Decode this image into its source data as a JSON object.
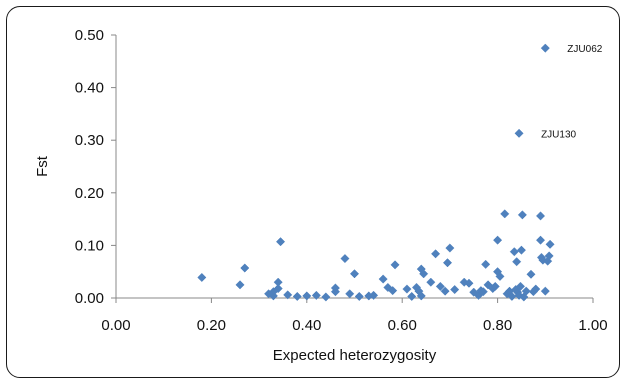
{
  "chart_data": {
    "type": "scatter",
    "xlabel": "Expected heterozygosity",
    "ylabel": "Fst",
    "xlim": [
      0,
      1
    ],
    "ylim": [
      0,
      0.5
    ],
    "x_ticks": [
      "0.00",
      "0.20",
      "0.40",
      "0.60",
      "0.80",
      "1.00"
    ],
    "y_ticks": [
      "0.00",
      "0.10",
      "0.20",
      "0.30",
      "0.40",
      "0.50"
    ],
    "grid": false,
    "marker_color": "#4f81bd",
    "series": [
      {
        "points": [
          [
            0.18,
            0.039
          ],
          [
            0.26,
            0.025
          ],
          [
            0.27,
            0.057
          ],
          [
            0.32,
            0.008
          ],
          [
            0.33,
            0.004
          ],
          [
            0.33,
            0.012
          ],
          [
            0.34,
            0.018
          ],
          [
            0.34,
            0.03
          ],
          [
            0.345,
            0.107
          ],
          [
            0.36,
            0.006
          ],
          [
            0.38,
            0.003
          ],
          [
            0.4,
            0.004
          ],
          [
            0.42,
            0.005
          ],
          [
            0.44,
            0.002
          ],
          [
            0.46,
            0.012
          ],
          [
            0.46,
            0.019
          ],
          [
            0.48,
            0.075
          ],
          [
            0.49,
            0.008
          ],
          [
            0.5,
            0.046
          ],
          [
            0.51,
            0.003
          ],
          [
            0.53,
            0.004
          ],
          [
            0.54,
            0.005
          ],
          [
            0.56,
            0.036
          ],
          [
            0.57,
            0.02
          ],
          [
            0.58,
            0.014
          ],
          [
            0.585,
            0.063
          ],
          [
            0.61,
            0.017
          ],
          [
            0.62,
            0.003
          ],
          [
            0.63,
            0.02
          ],
          [
            0.635,
            0.013
          ],
          [
            0.64,
            0.004
          ],
          [
            0.64,
            0.055
          ],
          [
            0.645,
            0.046
          ],
          [
            0.66,
            0.03
          ],
          [
            0.67,
            0.084
          ],
          [
            0.68,
            0.022
          ],
          [
            0.69,
            0.013
          ],
          [
            0.695,
            0.067
          ],
          [
            0.7,
            0.095
          ],
          [
            0.71,
            0.016
          ],
          [
            0.73,
            0.03
          ],
          [
            0.74,
            0.028
          ],
          [
            0.75,
            0.011
          ],
          [
            0.76,
            0.005
          ],
          [
            0.765,
            0.014
          ],
          [
            0.77,
            0.012
          ],
          [
            0.775,
            0.064
          ],
          [
            0.78,
            0.025
          ],
          [
            0.79,
            0.018
          ],
          [
            0.795,
            0.022
          ],
          [
            0.8,
            0.11
          ],
          [
            0.8,
            0.05
          ],
          [
            0.805,
            0.041
          ],
          [
            0.815,
            0.16
          ],
          [
            0.82,
            0.008
          ],
          [
            0.825,
            0.013
          ],
          [
            0.83,
            0.003
          ],
          [
            0.835,
            0.088
          ],
          [
            0.838,
            0.016
          ],
          [
            0.84,
            0.069
          ],
          [
            0.842,
            0.011
          ],
          [
            0.845,
            0.005
          ],
          [
            0.848,
            0.022
          ],
          [
            0.85,
            0.091
          ],
          [
            0.852,
            0.158
          ],
          [
            0.855,
            0.002
          ],
          [
            0.86,
            0.013
          ],
          [
            0.87,
            0.045
          ],
          [
            0.875,
            0.012
          ],
          [
            0.88,
            0.017
          ],
          [
            0.89,
            0.156
          ],
          [
            0.89,
            0.11
          ],
          [
            0.892,
            0.077
          ],
          [
            0.895,
            0.072
          ],
          [
            0.9,
            0.013
          ],
          [
            0.905,
            0.07
          ],
          [
            0.908,
            0.08
          ],
          [
            0.91,
            0.102
          ]
        ]
      }
    ],
    "annotations": [
      {
        "text": "ZJU062",
        "x": 0.9,
        "y": 0.475
      },
      {
        "text": "ZJU130",
        "x": 0.845,
        "y": 0.313
      }
    ]
  }
}
